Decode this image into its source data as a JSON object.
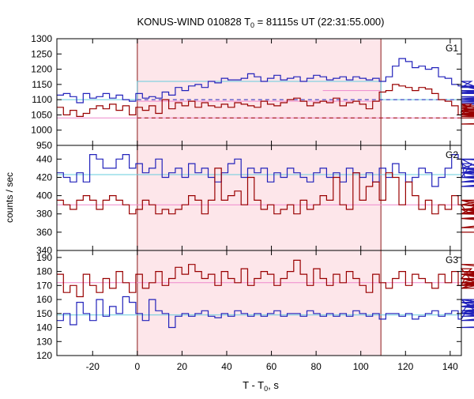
{
  "title_main": "KONUS-WIND 010828 T",
  "title_sub": "0",
  "title_rest": " = 81115s UT (22:31:55.000)",
  "ylabel": "counts / sec",
  "xlabel_main": "T - T",
  "xlabel_sub": "0",
  "xlabel_rest": ", s",
  "colors": {
    "blue": "#2222bb",
    "red": "#990000",
    "cyan": "#66ccdd",
    "pink": "#ee88cc",
    "shade": "#fde6ea"
  },
  "chart_data": [
    {
      "type": "line",
      "panel": "G1",
      "xlim": [
        -36,
        145
      ],
      "ylim": [
        950,
        1300
      ],
      "yticks": [
        950,
        1000,
        1050,
        1100,
        1150,
        1200,
        1250,
        1300
      ],
      "shade_x": [
        0,
        109
      ],
      "series": [
        {
          "color": "blue",
          "step": 2.944,
          "values": [
            1115,
            1120,
            1110,
            1090,
            1120,
            1105,
            1110,
            1120,
            1105,
            1115,
            1100,
            1095,
            1120,
            1105,
            1110,
            1105,
            1125,
            1115,
            1140,
            1130,
            1145,
            1150,
            1140,
            1160,
            1155,
            1170,
            1165,
            1165,
            1170,
            1185,
            1175,
            1160,
            1170,
            1180,
            1165,
            1170,
            1175,
            1160,
            1170,
            1180,
            1175,
            1165,
            1170,
            1175,
            1165,
            1175,
            1170,
            1165,
            1170,
            1160,
            1175,
            1210,
            1235,
            1225,
            1205,
            1210,
            1200,
            1205,
            1175,
            1170,
            1150,
            1145,
            1140,
            1160,
            1140,
            1145,
            1130,
            1120,
            1145,
            1110,
            1105,
            1100,
            1120,
            1130,
            1125,
            1110,
            1105,
            1100,
            1095,
            1110,
            1095,
            1085,
            1100,
            1105,
            1090,
            1095,
            1100,
            1090,
            1095
          ]
        },
        {
          "color": "red",
          "step": 2.944,
          "values": [
            1075,
            1050,
            1065,
            1045,
            1055,
            1070,
            1080,
            1070,
            1085,
            1065,
            1080,
            1050,
            1075,
            1065,
            1080,
            1055,
            1100,
            1070,
            1090,
            1080,
            1095,
            1075,
            1090,
            1080,
            1075,
            1085,
            1075,
            1090,
            1085,
            1080,
            1075,
            1095,
            1085,
            1080,
            1090,
            1100,
            1105,
            1095,
            1080,
            1090,
            1095,
            1090,
            1105,
            1080,
            1090,
            1095,
            1085,
            1070,
            1095,
            1125,
            1130,
            1150,
            1145,
            1140,
            1130,
            1140,
            1135,
            1120,
            1100,
            1095,
            1080,
            1050,
            1060,
            1085,
            1070,
            1060,
            1075,
            1050,
            1080,
            1060,
            1050,
            1070,
            1055,
            1050,
            1060,
            1050,
            1045,
            1060,
            1050,
            1065,
            1050,
            1055,
            1060,
            1045,
            1050,
            1040,
            1050,
            1020,
            1040
          ]
        }
      ],
      "levels": [
        {
          "color": "cyan",
          "x": [
            -36,
            0,
            0,
            109,
            109,
            145
          ],
          "y": [
            1100,
            1100,
            1160,
            1160,
            1100,
            1100
          ],
          "dash": false
        },
        {
          "color": "pink",
          "x": [
            -36,
            145
          ],
          "y": [
            1040,
            1040
          ],
          "dash": false
        },
        {
          "color": "pink",
          "x": [
            0,
            109
          ],
          "y": [
            1095,
            1095
          ],
          "dash": false
        },
        {
          "color": "pink",
          "x": [
            83,
            109
          ],
          "y": [
            1130,
            1130
          ],
          "dash": false
        },
        {
          "color": "blue",
          "x": [
            0,
            145
          ],
          "y": [
            1100,
            1100
          ],
          "dash": true
        },
        {
          "color": "red",
          "x": [
            0,
            145
          ],
          "y": [
            1040,
            1040
          ],
          "dash": true
        }
      ],
      "label": "G1"
    },
    {
      "type": "line",
      "panel": "G2",
      "xlim": [
        -36,
        145
      ],
      "ylim": [
        340,
        455
      ],
      "yticks": [
        340,
        360,
        380,
        400,
        420,
        440
      ],
      "shade_x": [
        0,
        109
      ],
      "series": [
        {
          "color": "blue",
          "step": 2.944,
          "values": [
            425,
            420,
            415,
            425,
            415,
            445,
            440,
            430,
            430,
            440,
            445,
            430,
            435,
            425,
            430,
            440,
            420,
            425,
            430,
            420,
            435,
            425,
            430,
            420,
            415,
            425,
            435,
            440,
            420,
            430,
            425,
            430,
            415,
            425,
            420,
            430,
            425,
            420,
            415,
            425,
            430,
            420,
            425,
            415,
            430,
            425,
            420,
            425,
            415,
            430,
            420,
            435,
            425,
            415,
            420,
            430,
            425,
            410,
            420,
            430,
            445,
            440,
            420,
            435,
            425,
            430,
            440,
            420,
            425,
            430,
            420,
            415,
            425,
            430,
            415,
            420,
            425,
            410,
            420,
            425,
            430,
            420,
            410,
            425,
            440,
            430,
            415,
            425,
            420
          ]
        },
        {
          "color": "red",
          "step": 2.944,
          "values": [
            395,
            390,
            385,
            395,
            400,
            395,
            385,
            395,
            400,
            395,
            390,
            380,
            385,
            395,
            390,
            380,
            385,
            380,
            385,
            390,
            400,
            395,
            380,
            395,
            430,
            395,
            400,
            405,
            390,
            420,
            395,
            385,
            390,
            380,
            385,
            390,
            380,
            395,
            385,
            390,
            400,
            395,
            420,
            390,
            385,
            425,
            395,
            410,
            415,
            395,
            425,
            420,
            390,
            415,
            400,
            385,
            395,
            380,
            390,
            385,
            400,
            390,
            385,
            380,
            390,
            395,
            385,
            380,
            390,
            385,
            380,
            390,
            385,
            390,
            380,
            390,
            385,
            395,
            380,
            390,
            385,
            390,
            375,
            385,
            365,
            385,
            380,
            375,
            360
          ]
        }
      ],
      "levels": [
        {
          "color": "cyan",
          "x": [
            -36,
            145
          ],
          "y": [
            423,
            423
          ],
          "dash": false
        },
        {
          "color": "pink",
          "x": [
            -36,
            145
          ],
          "y": [
            390,
            390
          ],
          "dash": false
        }
      ],
      "label": "G2"
    },
    {
      "type": "line",
      "panel": "G3",
      "xlim": [
        -36,
        145
      ],
      "ylim": [
        120,
        195
      ],
      "yticks": [
        120,
        130,
        140,
        150,
        160,
        170,
        180,
        190
      ],
      "shade_x": [
        0,
        109
      ],
      "series": [
        {
          "color": "blue",
          "step": 2.944,
          "values": [
            145,
            150,
            142,
            158,
            150,
            145,
            160,
            148,
            155,
            150,
            162,
            158,
            150,
            145,
            160,
            152,
            150,
            140,
            148,
            150,
            148,
            150,
            152,
            148,
            147,
            150,
            148,
            152,
            150,
            148,
            150,
            148,
            150,
            152,
            148,
            150,
            150,
            148,
            152,
            150,
            148,
            150,
            148,
            150,
            148,
            152,
            150,
            148,
            150,
            146,
            150,
            150,
            148,
            150,
            146,
            148,
            150,
            152,
            148,
            150,
            152,
            146,
            150,
            160,
            150,
            155,
            158,
            150,
            160,
            155,
            150,
            145,
            150,
            155,
            160,
            148,
            152,
            158,
            150,
            148,
            152,
            150,
            155,
            150,
            148,
            152,
            140,
            145,
            150
          ]
        },
        {
          "color": "red",
          "step": 2.944,
          "values": [
            178,
            165,
            170,
            162,
            178,
            170,
            165,
            175,
            168,
            180,
            172,
            165,
            178,
            168,
            172,
            180,
            170,
            175,
            183,
            178,
            185,
            180,
            175,
            178,
            170,
            180,
            175,
            172,
            182,
            170,
            175,
            180,
            178,
            170,
            175,
            180,
            188,
            178,
            170,
            182,
            175,
            170,
            178,
            172,
            180,
            175,
            170,
            165,
            178,
            172,
            168,
            175,
            180,
            170,
            178,
            175,
            172,
            168,
            178,
            172,
            180,
            170,
            175,
            182,
            168,
            175,
            170,
            178,
            172,
            180,
            175,
            170,
            178,
            172,
            168,
            180,
            175,
            170,
            178,
            185,
            175,
            170,
            180,
            178,
            172,
            175,
            170,
            180,
            172
          ]
        }
      ],
      "levels": [
        {
          "color": "cyan",
          "x": [
            -36,
            145
          ],
          "y": [
            149,
            149
          ],
          "dash": false
        },
        {
          "color": "pink",
          "x": [
            -36,
            145
          ],
          "y": [
            172,
            172
          ],
          "dash": false
        }
      ],
      "label": "G3"
    }
  ],
  "xticks": [
    -20,
    0,
    20,
    40,
    60,
    80,
    100,
    120,
    140
  ]
}
